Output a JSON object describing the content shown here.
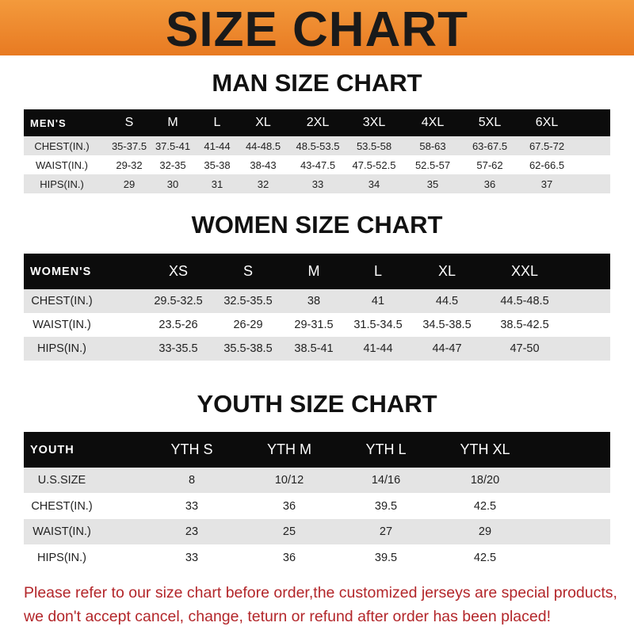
{
  "banner": {
    "title": "SIZE CHART",
    "color": "#ee8a2e"
  },
  "men": {
    "title": "MAN SIZE CHART",
    "header": [
      "MEN'S",
      "S",
      "M",
      "L",
      "XL",
      "2XL",
      "3XL",
      "4XL",
      "5XL",
      "6XL"
    ],
    "rows": [
      [
        "CHEST(IN.)",
        "35-37.5",
        "37.5-41",
        "41-44",
        "44-48.5",
        "48.5-53.5",
        "53.5-58",
        "58-63",
        "63-67.5",
        "67.5-72"
      ],
      [
        "WAIST(IN.)",
        "29-32",
        "32-35",
        "35-38",
        "38-43",
        "43-47.5",
        "47.5-52.5",
        "52.5-57",
        "57-62",
        "62-66.5"
      ],
      [
        "HIPS(IN.)",
        "29",
        "30",
        "31",
        "32",
        "33",
        "34",
        "35",
        "36",
        "37"
      ]
    ]
  },
  "women": {
    "title": "WOMEN SIZE CHART",
    "header": [
      "WOMEN'S",
      "XS",
      "S",
      "M",
      "L",
      "XL",
      "XXL"
    ],
    "rows": [
      [
        "CHEST(IN.)",
        "29.5-32.5",
        "32.5-35.5",
        "38",
        "41",
        "44.5",
        "44.5-48.5"
      ],
      [
        "WAIST(IN.)",
        "23.5-26",
        "26-29",
        "29-31.5",
        "31.5-34.5",
        "34.5-38.5",
        "38.5-42.5"
      ],
      [
        "HIPS(IN.)",
        "33-35.5",
        "35.5-38.5",
        "38.5-41",
        "41-44",
        "44-47",
        "47-50"
      ]
    ]
  },
  "youth": {
    "title": "YOUTH SIZE CHART",
    "header": [
      "YOUTH",
      "YTH S",
      "YTH M",
      "YTH L",
      "YTH XL"
    ],
    "rows": [
      [
        "U.S.SIZE",
        "8",
        "10/12",
        "14/16",
        "18/20"
      ],
      [
        "CHEST(IN.)",
        "33",
        "36",
        "39.5",
        "42.5"
      ],
      [
        "WAIST(IN.)",
        "23",
        "25",
        "27",
        "29"
      ],
      [
        "HIPS(IN.)",
        "33",
        "36",
        "39.5",
        "42.5"
      ]
    ]
  },
  "footer": {
    "line1": "Please refer to our size chart before order,the customized jerseys are special products,",
    "line2": "we don't accept cancel, change, teturn or refund after order has been placed!",
    "color": "#b3262a"
  }
}
